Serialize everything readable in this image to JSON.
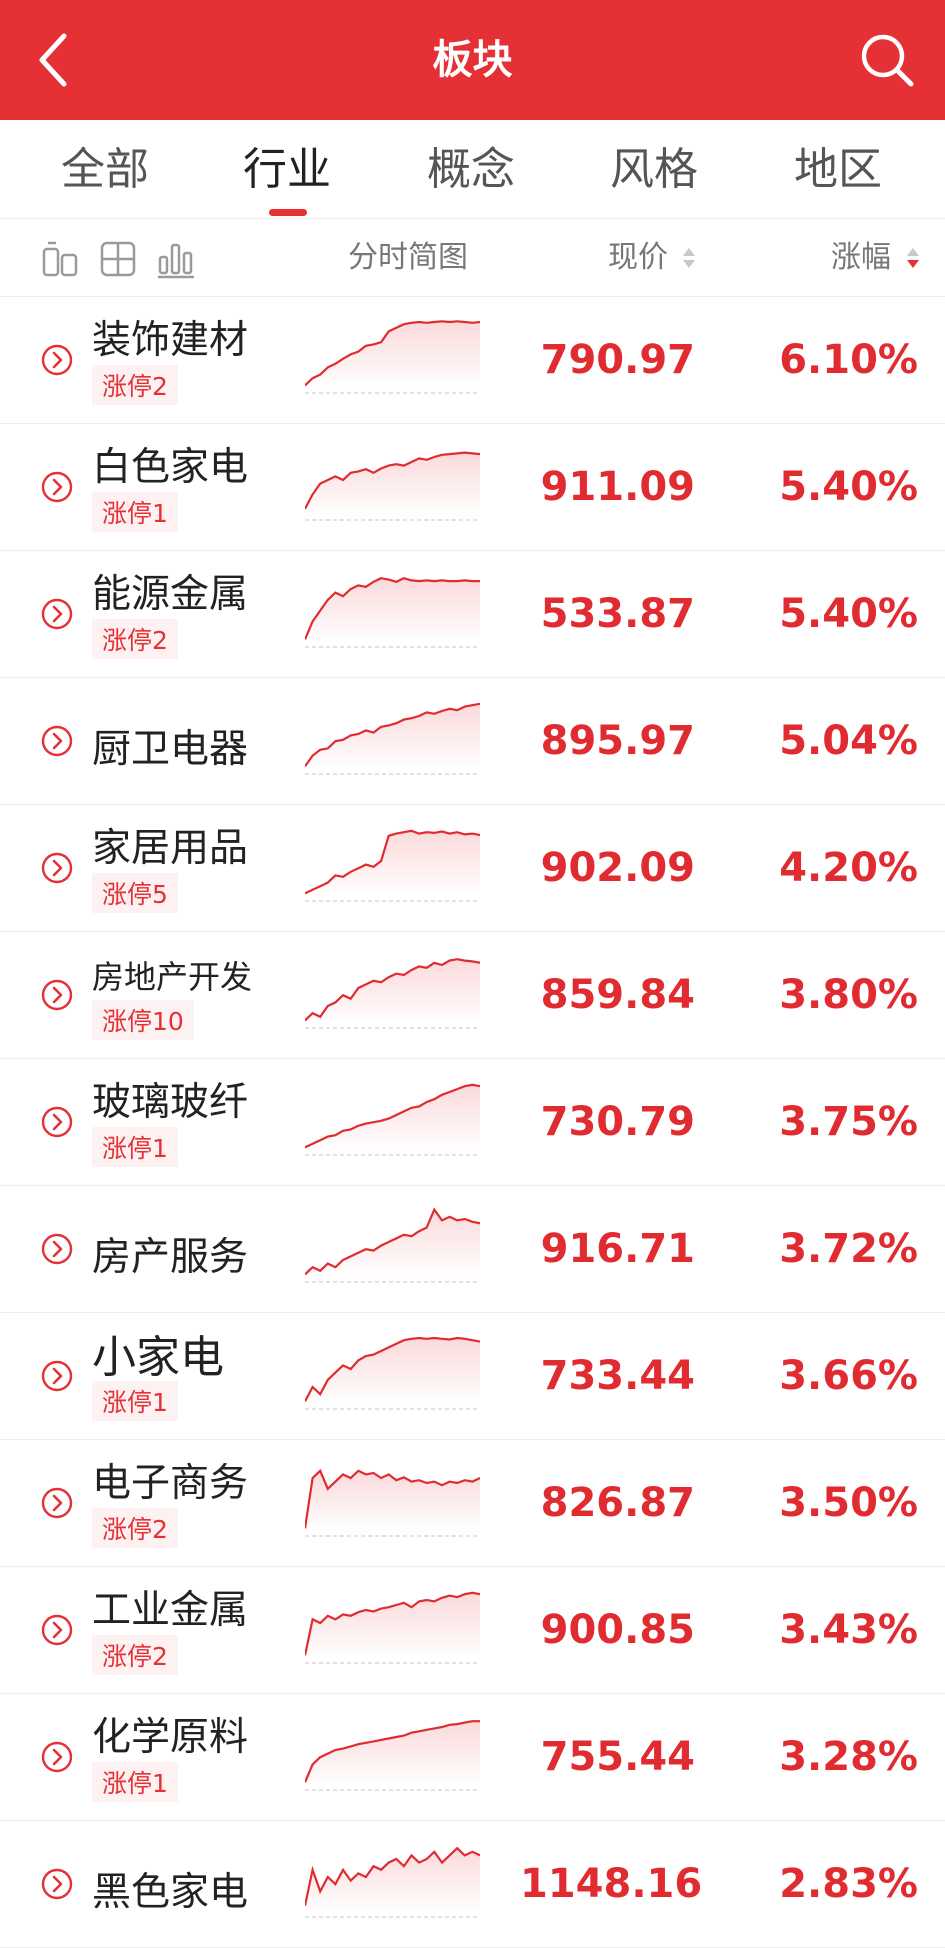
{
  "header": {
    "title": "板块",
    "back_icon": "chevron-left-icon",
    "search_icon": "search-icon"
  },
  "tabs": [
    {
      "label": "全部",
      "active": false
    },
    {
      "label": "行业",
      "active": true
    },
    {
      "label": "概念",
      "active": false
    },
    {
      "label": "风格",
      "active": false
    },
    {
      "label": "地区",
      "active": false
    }
  ],
  "columns": {
    "chart": "分时简图",
    "price": "现价",
    "change": "涨幅",
    "sort_active": "涨幅",
    "sort_direction": "descending"
  },
  "view_icons": [
    "list-view-icon",
    "grid-view-icon",
    "bar-chart-view-icon"
  ],
  "colors": {
    "accent": "#e53035",
    "up": "#e02b30"
  },
  "rows": [
    {
      "name": "装饰建材",
      "tag": "涨停2",
      "price": "790.97",
      "change": "6.10%",
      "spark": [
        0.05,
        0.15,
        0.2,
        0.3,
        0.35,
        0.42,
        0.48,
        0.52,
        0.6,
        0.62,
        0.65,
        0.8,
        0.85,
        0.9,
        0.92,
        0.93,
        0.92,
        0.93,
        0.94,
        0.93,
        0.94,
        0.93,
        0.92,
        0.93
      ]
    },
    {
      "name": "白色家电",
      "tag": "涨停1",
      "price": "911.09",
      "change": "5.40%",
      "spark": [
        0.1,
        0.3,
        0.45,
        0.5,
        0.55,
        0.5,
        0.6,
        0.62,
        0.65,
        0.6,
        0.66,
        0.7,
        0.72,
        0.7,
        0.75,
        0.8,
        0.78,
        0.82,
        0.85,
        0.86,
        0.87,
        0.88,
        0.87,
        0.86
      ]
    },
    {
      "name": "能源金属",
      "tag": "涨停2",
      "price": "533.87",
      "change": "5.40%",
      "spark": [
        0.05,
        0.3,
        0.45,
        0.6,
        0.7,
        0.65,
        0.75,
        0.8,
        0.78,
        0.85,
        0.9,
        0.88,
        0.85,
        0.9,
        0.87,
        0.86,
        0.87,
        0.86,
        0.87,
        0.86,
        0.86,
        0.87,
        0.86,
        0.86
      ]
    },
    {
      "name": "厨卫电器",
      "tag": "",
      "price": "895.97",
      "change": "5.04%",
      "spark": [
        0.05,
        0.2,
        0.28,
        0.3,
        0.4,
        0.42,
        0.48,
        0.5,
        0.55,
        0.52,
        0.6,
        0.62,
        0.65,
        0.7,
        0.72,
        0.75,
        0.8,
        0.78,
        0.82,
        0.85,
        0.83,
        0.88,
        0.9,
        0.92
      ]
    },
    {
      "name": "家居用品",
      "tag": "涨停5",
      "price": "902.09",
      "change": "4.20%",
      "spark": [
        0.05,
        0.1,
        0.15,
        0.2,
        0.3,
        0.28,
        0.35,
        0.4,
        0.45,
        0.42,
        0.5,
        0.85,
        0.88,
        0.9,
        0.92,
        0.88,
        0.9,
        0.89,
        0.91,
        0.88,
        0.9,
        0.87,
        0.88,
        0.86
      ]
    },
    {
      "name": "房地产开发",
      "tag": "涨停10",
      "price": "859.84",
      "change": "3.80%",
      "spark": [
        0.05,
        0.15,
        0.1,
        0.25,
        0.3,
        0.4,
        0.35,
        0.5,
        0.55,
        0.6,
        0.58,
        0.65,
        0.7,
        0.68,
        0.75,
        0.8,
        0.78,
        0.85,
        0.82,
        0.88,
        0.9,
        0.88,
        0.87,
        0.85
      ]
    },
    {
      "name": "玻璃玻纤",
      "tag": "涨停1",
      "price": "730.79",
      "change": "3.75%",
      "spark": [
        0.05,
        0.1,
        0.15,
        0.2,
        0.22,
        0.28,
        0.3,
        0.35,
        0.38,
        0.4,
        0.42,
        0.45,
        0.5,
        0.55,
        0.6,
        0.62,
        0.68,
        0.72,
        0.78,
        0.82,
        0.86,
        0.9,
        0.92,
        0.9
      ]
    },
    {
      "name": "房产服务",
      "tag": "",
      "price": "916.71",
      "change": "3.72%",
      "spark": [
        0.05,
        0.15,
        0.1,
        0.2,
        0.15,
        0.25,
        0.3,
        0.35,
        0.4,
        0.38,
        0.45,
        0.5,
        0.55,
        0.6,
        0.58,
        0.65,
        0.7,
        0.95,
        0.8,
        0.85,
        0.8,
        0.82,
        0.78,
        0.76
      ]
    },
    {
      "name": "小家电",
      "tag": "涨停1",
      "price": "733.44",
      "change": "3.66%",
      "spark": [
        0.05,
        0.25,
        0.15,
        0.35,
        0.45,
        0.55,
        0.5,
        0.62,
        0.68,
        0.7,
        0.75,
        0.8,
        0.85,
        0.9,
        0.92,
        0.93,
        0.92,
        0.93,
        0.92,
        0.91,
        0.93,
        0.92,
        0.9,
        0.88
      ]
    },
    {
      "name": "电子商务",
      "tag": "涨停2",
      "price": "826.87",
      "change": "3.50%",
      "spark": [
        0.05,
        0.75,
        0.85,
        0.6,
        0.7,
        0.8,
        0.75,
        0.85,
        0.8,
        0.82,
        0.75,
        0.8,
        0.72,
        0.76,
        0.7,
        0.72,
        0.68,
        0.7,
        0.65,
        0.7,
        0.68,
        0.72,
        0.7,
        0.75
      ]
    },
    {
      "name": "工业金属",
      "tag": "涨停2",
      "price": "900.85",
      "change": "3.43%",
      "spark": [
        0.05,
        0.55,
        0.5,
        0.6,
        0.55,
        0.62,
        0.6,
        0.65,
        0.68,
        0.66,
        0.7,
        0.72,
        0.75,
        0.78,
        0.72,
        0.8,
        0.82,
        0.8,
        0.85,
        0.88,
        0.86,
        0.9,
        0.92,
        0.9
      ]
    },
    {
      "name": "化学原料",
      "tag": "涨停1",
      "price": "755.44",
      "change": "3.28%",
      "spark": [
        0.05,
        0.3,
        0.4,
        0.45,
        0.5,
        0.52,
        0.55,
        0.58,
        0.6,
        0.62,
        0.64,
        0.66,
        0.68,
        0.7,
        0.74,
        0.76,
        0.78,
        0.8,
        0.82,
        0.85,
        0.86,
        0.88,
        0.9,
        0.9
      ]
    },
    {
      "name": "黑色家电",
      "tag": "",
      "price": "1148.16",
      "change": "2.83%",
      "spark": [
        0.1,
        0.6,
        0.3,
        0.5,
        0.4,
        0.6,
        0.45,
        0.55,
        0.5,
        0.65,
        0.6,
        0.7,
        0.75,
        0.65,
        0.8,
        0.7,
        0.75,
        0.85,
        0.7,
        0.8,
        0.9,
        0.8,
        0.85,
        0.8
      ]
    }
  ]
}
